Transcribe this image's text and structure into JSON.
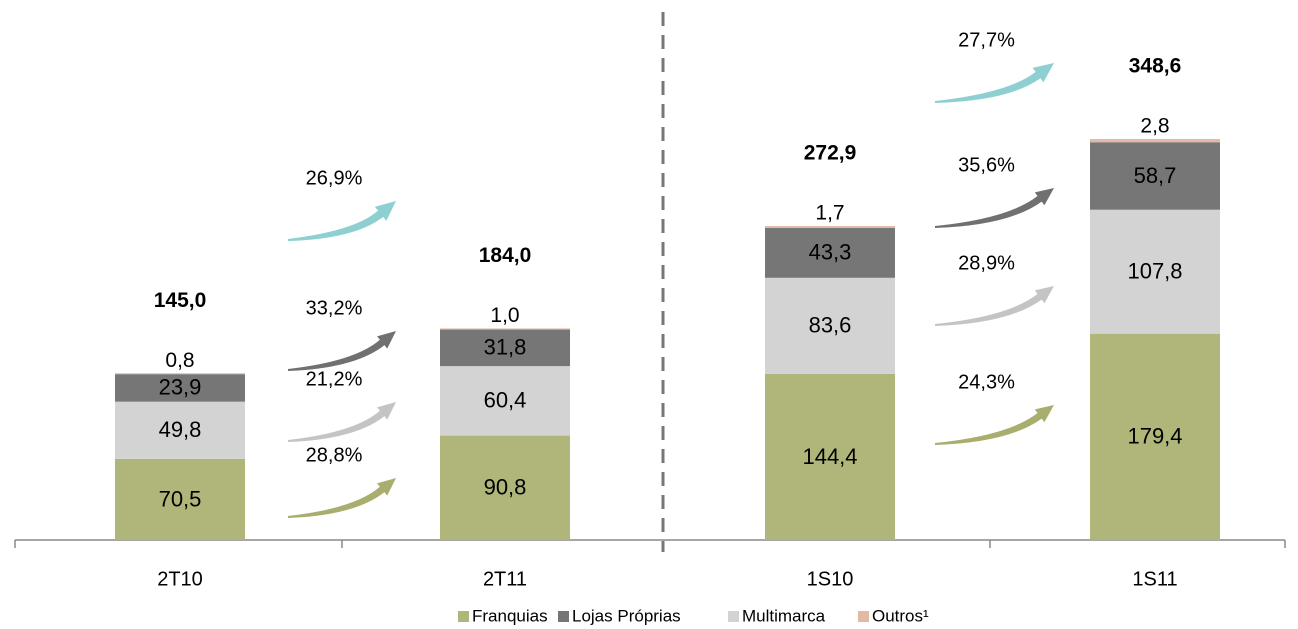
{
  "chart_data": {
    "type": "bar",
    "stacked": true,
    "categories": [
      "2T10",
      "2T11",
      "1S10",
      "1S11"
    ],
    "series": [
      {
        "name": "Franquias",
        "color": "#b0b57a",
        "values": [
          70.5,
          90.8,
          144.4,
          179.4
        ],
        "value_labels": [
          "70,5",
          "90,8",
          "144,4",
          "179,4"
        ]
      },
      {
        "name": "Lojas Próprias",
        "color": "#767676",
        "values": [
          23.9,
          31.8,
          43.3,
          58.7
        ],
        "value_labels": [
          "23,9",
          "31,8",
          "43,3",
          "58,7"
        ]
      },
      {
        "name": "Multimarca",
        "color": "#d3d3d3",
        "values": [
          49.8,
          60.4,
          83.6,
          107.8
        ],
        "value_labels": [
          "49,8",
          "60,4",
          "83,6",
          "107,8"
        ]
      },
      {
        "name": "Outros¹",
        "color": "#e3b9a6",
        "values": [
          0.8,
          1.0,
          1.7,
          2.8
        ],
        "value_labels": [
          "0,8",
          "1,0",
          "1,7",
          "2,8"
        ]
      }
    ],
    "totals": {
      "values": [
        145.0,
        184.0,
        272.9,
        348.6
      ],
      "value_labels": [
        "145,0",
        "184,0",
        "272,9",
        "348,6"
      ]
    },
    "growth": [
      {
        "values": [
          28.8,
          21.2,
          33.2,
          26.9
        ],
        "value_labels": [
          "28,8%",
          "21,2%",
          "33,2%",
          "26,9%"
        ],
        "colors": [
          "#a9ae6e",
          "#c4c4c4",
          "#707070",
          "#8ecfd1"
        ]
      },
      {
        "values": [
          24.3,
          28.9,
          35.6,
          27.7
        ],
        "value_labels": [
          "24,3%",
          "28,9%",
          "35,6%",
          "27,7%"
        ],
        "colors": [
          "#a9ae6e",
          "#c4c4c4",
          "#707070",
          "#8ecfd1"
        ]
      }
    ]
  }
}
